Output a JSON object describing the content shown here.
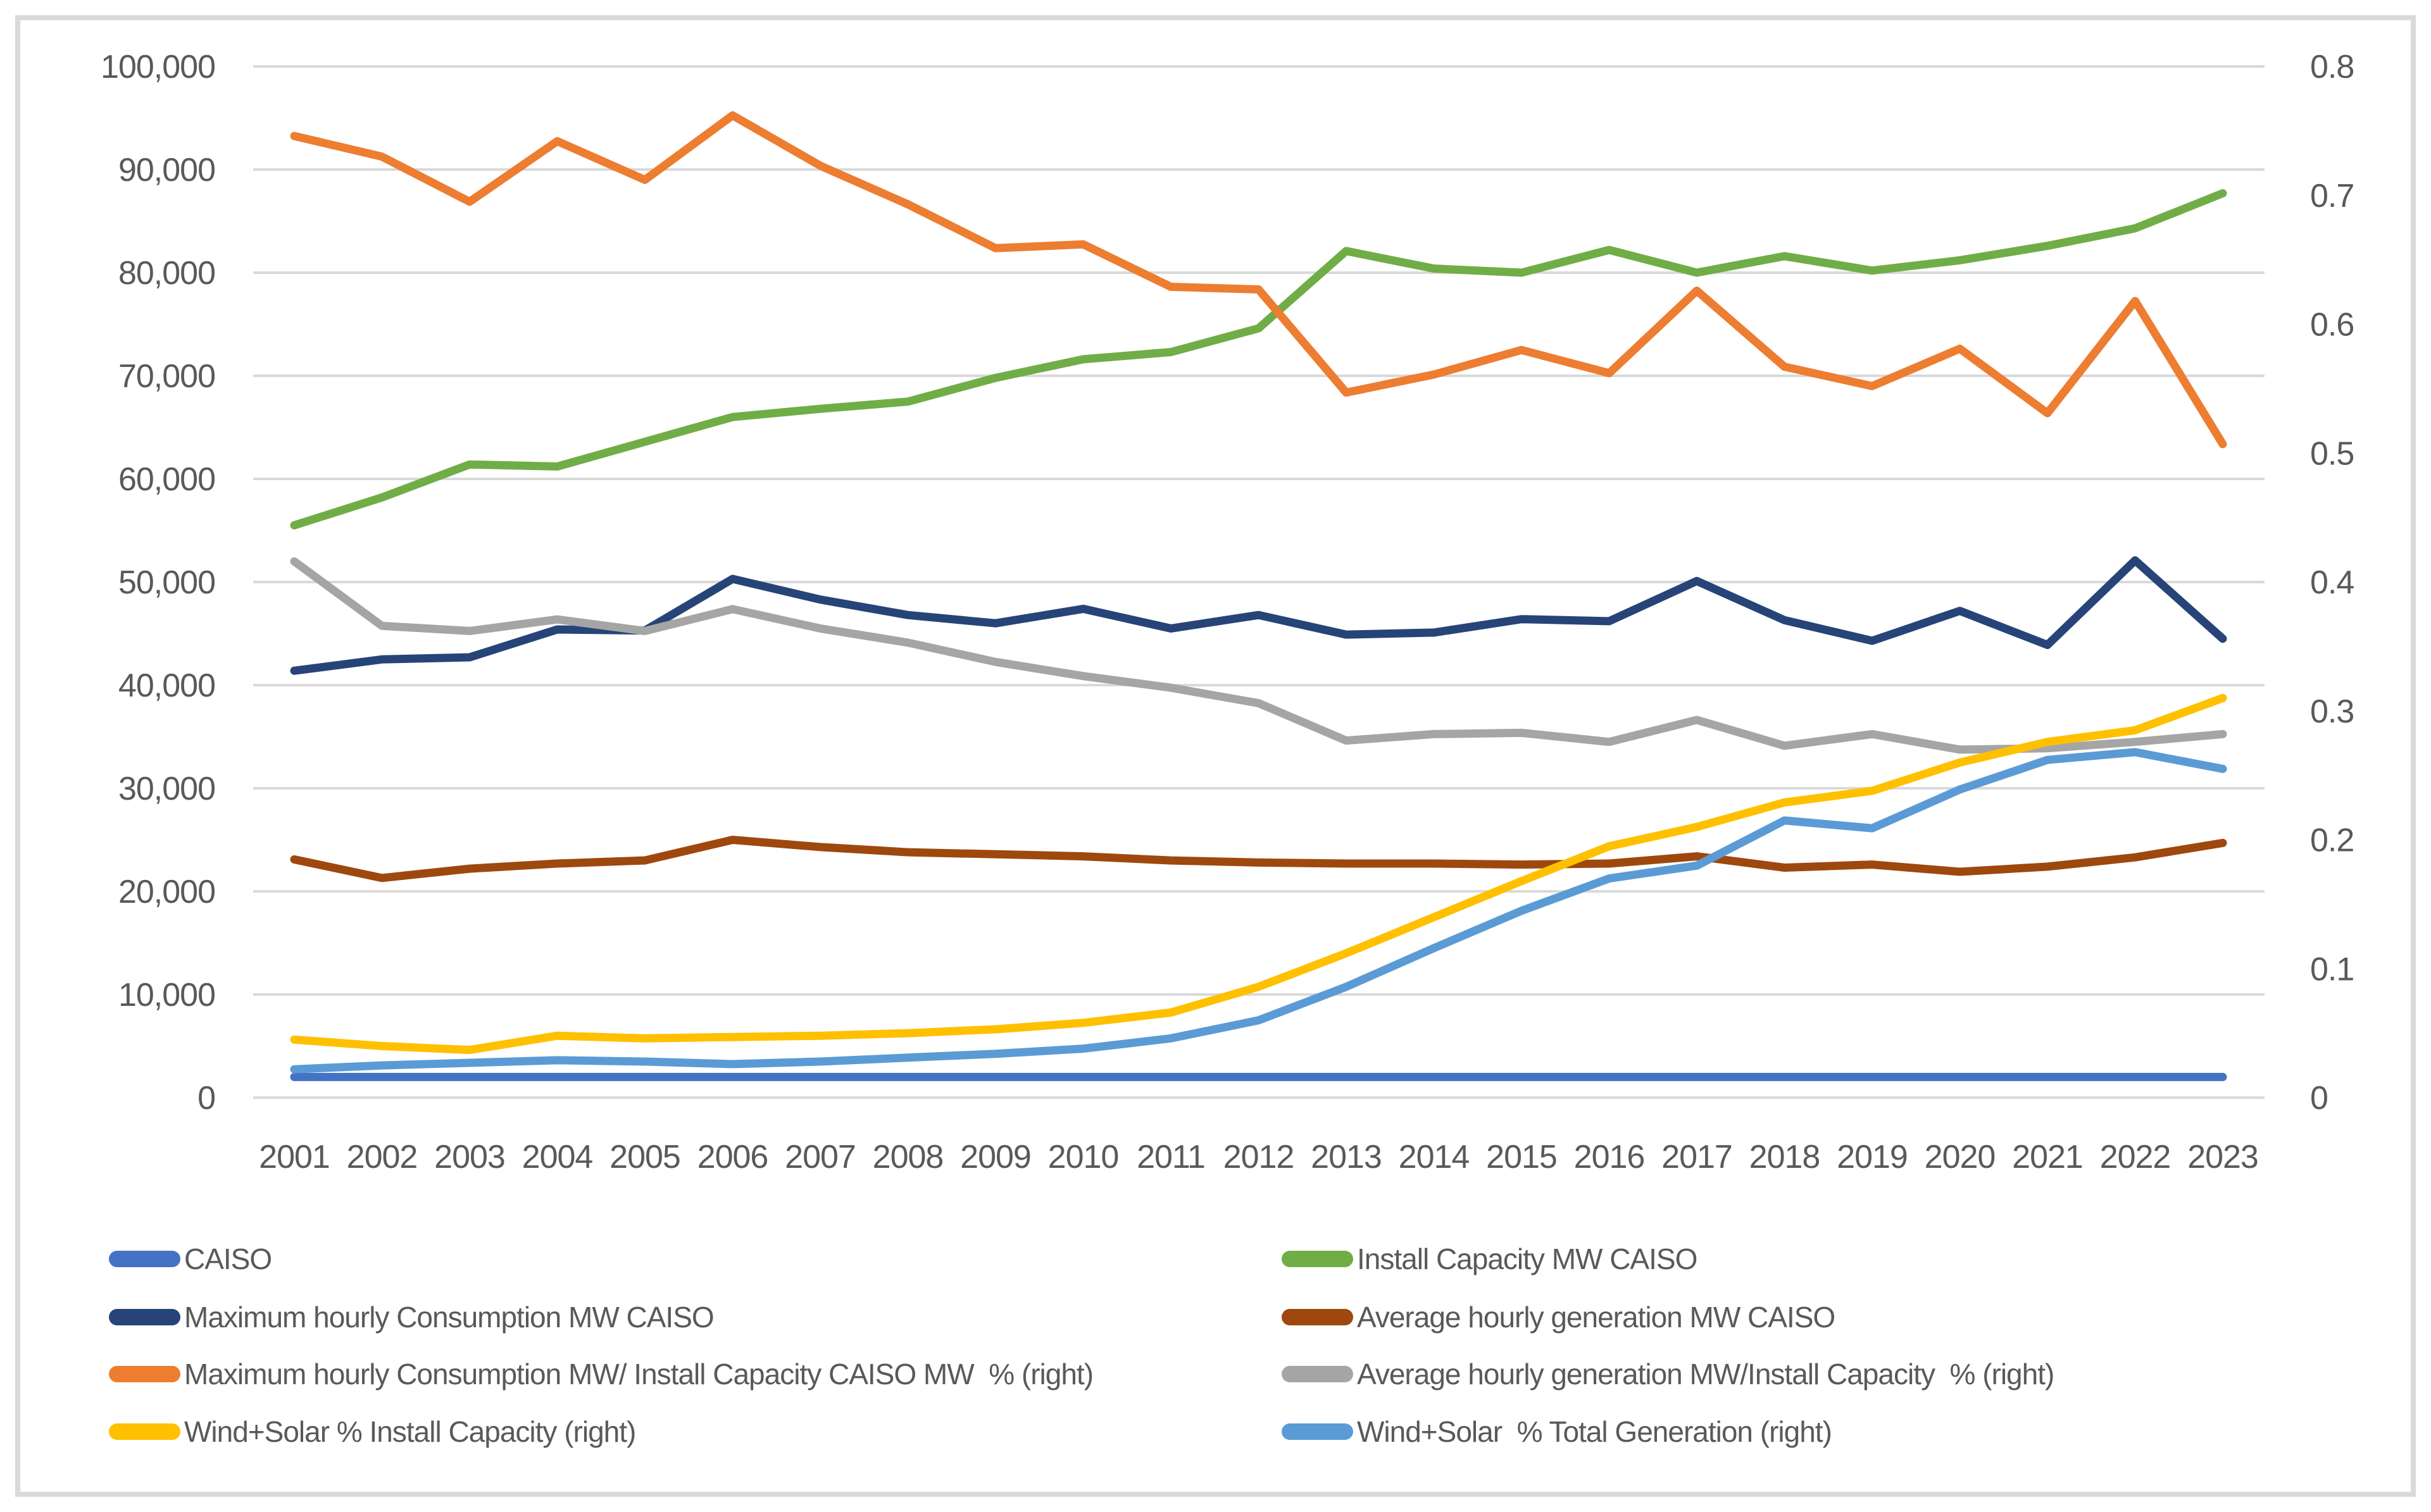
{
  "figure": {
    "background_color": "#ffffff",
    "border_color": "#d9d9d9",
    "gridline_color": "#d9d9d9",
    "text_color": "#595959",
    "title": ""
  },
  "chart_data": {
    "type": "line",
    "grid": true,
    "legend_position": "bottom-two-columns",
    "x": [
      "2001",
      "2002",
      "2003",
      "2004",
      "2005",
      "2006",
      "2007",
      "2008",
      "2009",
      "2010",
      "2011",
      "2012",
      "2013",
      "2014",
      "2015",
      "2016",
      "2017",
      "2018",
      "2019",
      "2020",
      "2021",
      "2022",
      "2023"
    ],
    "left_axis": {
      "min": 0,
      "max": 100000,
      "step": 10000,
      "tick_labels": [
        "100,000",
        "90,000",
        "80,000",
        "70,000",
        "60,000",
        "50,000",
        "40,000",
        "30,000",
        "20,000",
        "10,000",
        "0"
      ]
    },
    "right_axis": {
      "min": 0,
      "max": 0.8,
      "step": 0.1,
      "tick_labels": [
        "0.8",
        "0.7",
        "0.6",
        "0.5",
        "0.4",
        "0.3",
        "0.2",
        "0.1",
        "0"
      ]
    },
    "series": [
      {
        "key": "caiso",
        "name": "CAISO",
        "color": "#4472C4",
        "axis": "left",
        "values": [
          2000,
          2000,
          2000,
          2000,
          2000,
          2000,
          2000,
          2000,
          2000,
          2000,
          2000,
          2000,
          2000,
          2000,
          2000,
          2000,
          2000,
          2000,
          2000,
          2000,
          2000,
          2000,
          2000
        ]
      },
      {
        "key": "max-hourly-consumption",
        "name": "Maximum hourly Consumption MW CAISO",
        "color": "#264478",
        "axis": "left",
        "values": [
          41400,
          42500,
          42700,
          45400,
          45300,
          50300,
          48300,
          46800,
          46000,
          47400,
          45500,
          46800,
          44900,
          45100,
          46400,
          46200,
          50100,
          46300,
          44300,
          47200,
          43900,
          52100,
          44500
        ]
      },
      {
        "key": "max-consumption-per-install-capacity",
        "name": "Maximum hourly Consumption MW/ Install Capacity CAISO MW  % (right)",
        "color": "#ED7D31",
        "axis": "right",
        "values": [
          0.746,
          0.73,
          0.695,
          0.742,
          0.712,
          0.762,
          0.723,
          0.693,
          0.659,
          0.662,
          0.629,
          0.627,
          0.547,
          0.561,
          0.58,
          0.562,
          0.626,
          0.567,
          0.552,
          0.581,
          0.531,
          0.618,
          0.507
        ]
      },
      {
        "key": "wind-solar-pct-install-capacity",
        "name": "Wind+Solar % Install Capacity (right)",
        "color": "#FFC000",
        "axis": "right",
        "values": [
          0.045,
          0.04,
          0.037,
          0.048,
          0.046,
          0.047,
          0.048,
          0.05,
          0.053,
          0.058,
          0.066,
          0.086,
          0.112,
          0.14,
          0.168,
          0.195,
          0.21,
          0.229,
          0.238,
          0.26,
          0.276,
          0.285,
          0.31
        ]
      },
      {
        "key": "install-capacity",
        "name": "Install Capacity MW CAISO",
        "color": "#70AD47",
        "axis": "left",
        "values": [
          55500,
          58200,
          61400,
          61200,
          63600,
          66000,
          66800,
          67500,
          69800,
          71600,
          72300,
          74600,
          82100,
          80400,
          80000,
          82200,
          80000,
          81600,
          80200,
          81200,
          82600,
          84300,
          87700
        ]
      },
      {
        "key": "avg-hourly-generation",
        "name": "Average hourly generation MW CAISO",
        "color": "#9E480E",
        "axis": "left",
        "values": [
          23100,
          21300,
          22200,
          22700,
          23000,
          25000,
          24300,
          23800,
          23600,
          23400,
          23000,
          22800,
          22700,
          22700,
          22600,
          22700,
          23400,
          22300,
          22600,
          21900,
          22400,
          23300,
          24700
        ]
      },
      {
        "key": "avg-generation-per-install-capacity",
        "name": "Average hourly generation MW/Install Capacity  % (right)",
        "color": "#A5A5A5",
        "axis": "right",
        "values": [
          0.416,
          0.366,
          0.362,
          0.371,
          0.362,
          0.379,
          0.364,
          0.353,
          0.338,
          0.327,
          0.318,
          0.306,
          0.277,
          0.282,
          0.283,
          0.276,
          0.293,
          0.273,
          0.282,
          0.27,
          0.271,
          0.276,
          0.282
        ]
      },
      {
        "key": "wind-solar-pct-total-generation",
        "name": "Wind+Solar  % Total Generation (right)",
        "color": "#5B9BD5",
        "axis": "right",
        "values": [
          0.022,
          0.025,
          0.027,
          0.029,
          0.028,
          0.026,
          0.028,
          0.031,
          0.034,
          0.038,
          0.046,
          0.06,
          0.086,
          0.116,
          0.145,
          0.17,
          0.18,
          0.215,
          0.209,
          0.239,
          0.262,
          0.268,
          0.255
        ]
      }
    ],
    "draw_order": [
      0,
      4,
      1,
      5,
      2,
      6,
      3,
      7
    ],
    "legend_columns": {
      "left": [
        0,
        1,
        2,
        3
      ],
      "right": [
        4,
        5,
        6,
        7
      ]
    }
  }
}
